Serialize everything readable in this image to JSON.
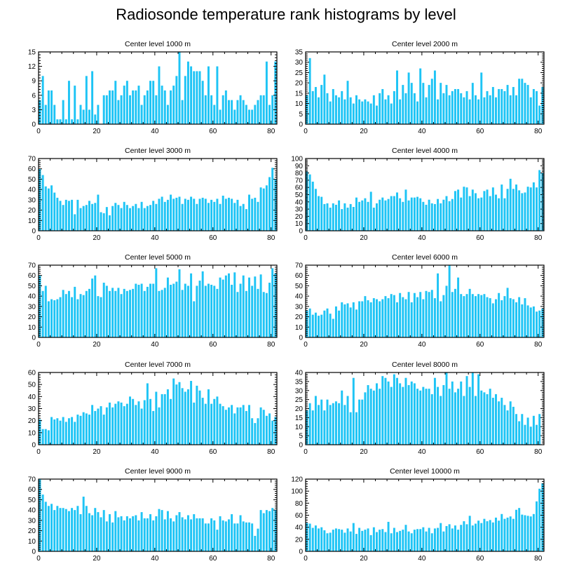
{
  "title": "Radiosonde temperature rank histograms by level",
  "colors": {
    "bar": "#1EC4F5",
    "axis": "#000000",
    "background": "#ffffff"
  },
  "chart_data": [
    {
      "type": "bar",
      "title": "Center level 1000 m",
      "xlim": [
        0,
        82
      ],
      "ylim": [
        0,
        15
      ],
      "xticks": [
        0,
        20,
        40,
        60,
        80
      ],
      "yticks": [
        0,
        3,
        6,
        9,
        12,
        15
      ],
      "x_start": 0,
      "values": [
        5,
        10,
        4,
        7,
        7,
        4,
        1,
        1,
        5,
        1,
        9,
        1,
        8,
        1,
        4,
        3,
        10,
        3,
        11,
        2,
        4,
        0,
        6,
        6,
        7,
        7,
        9,
        5,
        6,
        8,
        9,
        6,
        7,
        7,
        8,
        4,
        6,
        7,
        9,
        9,
        6,
        12,
        8,
        7,
        4,
        7,
        8,
        10,
        15,
        5,
        10,
        13,
        12,
        11,
        11,
        11,
        9,
        6,
        12,
        6,
        4,
        12,
        3,
        6,
        7,
        5,
        5,
        3,
        5,
        6,
        5,
        4,
        3,
        3,
        4,
        5,
        6,
        6,
        13,
        4,
        6,
        13
      ],
      "xlabel": "",
      "ylabel": ""
    },
    {
      "type": "bar",
      "title": "Center level 2000 m",
      "xlim": [
        0,
        82
      ],
      "ylim": [
        0,
        35
      ],
      "xticks": [
        0,
        20,
        40,
        60,
        80
      ],
      "yticks": [
        0,
        5,
        10,
        15,
        20,
        25,
        30,
        35
      ],
      "x_start": 0,
      "values": [
        14,
        32,
        16,
        18,
        13,
        19,
        24,
        15,
        11,
        17,
        14,
        13,
        16,
        12,
        21,
        13,
        10,
        14,
        12,
        11,
        12,
        11,
        10,
        14,
        9,
        15,
        17,
        12,
        14,
        10,
        16,
        26,
        12,
        19,
        15,
        25,
        20,
        15,
        11,
        27,
        20,
        13,
        19,
        22,
        26,
        12,
        20,
        15,
        19,
        14,
        16,
        17,
        17,
        15,
        13,
        16,
        12,
        20,
        14,
        12,
        25,
        13,
        16,
        14,
        18,
        13,
        17,
        17,
        16,
        19,
        14,
        18,
        14,
        22,
        22,
        20,
        19,
        13,
        17,
        16,
        9,
        18
      ],
      "xlabel": "",
      "ylabel": ""
    },
    {
      "type": "bar",
      "title": "Center level 3000 m",
      "xlim": [
        0,
        82
      ],
      "ylim": [
        0,
        70
      ],
      "xticks": [
        0,
        20,
        40,
        60,
        80
      ],
      "yticks": [
        0,
        10,
        20,
        30,
        40,
        50,
        60,
        70
      ],
      "x_start": 0,
      "values": [
        60,
        54,
        43,
        41,
        44,
        37,
        32,
        29,
        25,
        30,
        29,
        30,
        16,
        30,
        22,
        24,
        25,
        29,
        26,
        27,
        35,
        18,
        17,
        23,
        15,
        24,
        27,
        25,
        22,
        28,
        25,
        22,
        24,
        26,
        22,
        28,
        22,
        24,
        25,
        29,
        26,
        31,
        33,
        28,
        30,
        35,
        31,
        32,
        33,
        26,
        31,
        30,
        33,
        31,
        26,
        31,
        32,
        31,
        27,
        30,
        28,
        31,
        26,
        34,
        31,
        32,
        31,
        27,
        30,
        24,
        26,
        21,
        35,
        31,
        32,
        28,
        42,
        41,
        44,
        52,
        61,
        50
      ],
      "xlabel": "",
      "ylabel": ""
    },
    {
      "type": "bar",
      "title": "Center level 4000 m",
      "xlim": [
        0,
        82
      ],
      "ylim": [
        0,
        100
      ],
      "xticks": [
        0,
        20,
        40,
        60,
        80
      ],
      "yticks": [
        0,
        10,
        20,
        30,
        40,
        50,
        60,
        70,
        80,
        90,
        100
      ],
      "x_start": 0,
      "values": [
        82,
        78,
        68,
        58,
        48,
        47,
        37,
        38,
        32,
        38,
        36,
        42,
        30,
        38,
        32,
        37,
        33,
        46,
        40,
        42,
        45,
        40,
        54,
        32,
        38,
        43,
        46,
        42,
        44,
        48,
        48,
        53,
        45,
        40,
        57,
        42,
        46,
        46,
        47,
        45,
        40,
        36,
        43,
        38,
        37,
        44,
        38,
        43,
        48,
        41,
        44,
        55,
        57,
        46,
        61,
        60,
        48,
        57,
        52,
        45,
        46,
        55,
        57,
        48,
        60,
        50,
        45,
        64,
        45,
        58,
        72,
        58,
        64,
        56,
        52,
        53,
        61,
        60,
        67,
        60,
        84,
        80
      ],
      "xlabel": "",
      "ylabel": ""
    },
    {
      "type": "bar",
      "title": "Center level 5000 m",
      "xlim": [
        0,
        82
      ],
      "ylim": [
        0,
        70
      ],
      "xticks": [
        0,
        20,
        40,
        60,
        80
      ],
      "yticks": [
        0,
        10,
        20,
        30,
        40,
        50,
        60,
        70
      ],
      "x_start": 0,
      "values": [
        60,
        45,
        50,
        35,
        37,
        36,
        37,
        39,
        46,
        42,
        45,
        39,
        49,
        37,
        42,
        41,
        45,
        47,
        57,
        60,
        40,
        39,
        53,
        50,
        45,
        48,
        45,
        48,
        42,
        47,
        45,
        46,
        47,
        52,
        51,
        52,
        45,
        49,
        52,
        52,
        67,
        45,
        46,
        48,
        58,
        51,
        52,
        54,
        66,
        46,
        52,
        50,
        62,
        35,
        50,
        55,
        64,
        50,
        52,
        51,
        50,
        47,
        58,
        56,
        60,
        62,
        51,
        63,
        44,
        52,
        60,
        45,
        58,
        50,
        59,
        47,
        61,
        44,
        43,
        53,
        67,
        62
      ],
      "xlabel": "",
      "ylabel": ""
    },
    {
      "type": "bar",
      "title": "Center level 6000 m",
      "xlim": [
        0,
        82
      ],
      "ylim": [
        0,
        70
      ],
      "xticks": [
        0,
        20,
        40,
        60,
        80
      ],
      "yticks": [
        0,
        10,
        20,
        30,
        40,
        50,
        60,
        70
      ],
      "x_start": 0,
      "values": [
        26,
        28,
        22,
        24,
        21,
        22,
        26,
        28,
        23,
        18,
        30,
        26,
        34,
        32,
        33,
        29,
        34,
        27,
        35,
        35,
        40,
        36,
        34,
        38,
        37,
        35,
        37,
        40,
        38,
        42,
        41,
        34,
        43,
        39,
        37,
        44,
        34,
        43,
        39,
        44,
        37,
        45,
        44,
        46,
        38,
        62,
        35,
        41,
        50,
        70,
        44,
        47,
        58,
        42,
        40,
        42,
        47,
        42,
        40,
        42,
        41,
        42,
        39,
        38,
        33,
        37,
        43,
        36,
        40,
        48,
        38,
        37,
        34,
        39,
        32,
        38,
        31,
        29,
        30,
        25,
        26,
        28
      ],
      "xlabel": "",
      "ylabel": ""
    },
    {
      "type": "bar",
      "title": "Center level 7000 m",
      "xlim": [
        0,
        82
      ],
      "ylim": [
        0,
        60
      ],
      "xticks": [
        0,
        20,
        40,
        60,
        80
      ],
      "yticks": [
        0,
        10,
        20,
        30,
        40,
        50,
        60
      ],
      "x_start": 0,
      "values": [
        21,
        13,
        13,
        12,
        23,
        21,
        22,
        20,
        23,
        19,
        22,
        23,
        19,
        25,
        24,
        27,
        26,
        25,
        33,
        28,
        30,
        32,
        25,
        31,
        35,
        31,
        34,
        36,
        35,
        32,
        34,
        40,
        38,
        33,
        36,
        30,
        37,
        51,
        38,
        28,
        44,
        31,
        42,
        42,
        46,
        38,
        55,
        50,
        52,
        47,
        44,
        46,
        53,
        35,
        49,
        45,
        39,
        34,
        46,
        34,
        38,
        40,
        34,
        32,
        29,
        31,
        33,
        26,
        31,
        31,
        33,
        28,
        33,
        22,
        18,
        22,
        31,
        29,
        24,
        26,
        20,
        23
      ],
      "xlabel": "",
      "ylabel": ""
    },
    {
      "type": "bar",
      "title": "Center level 8000 m",
      "xlim": [
        0,
        82
      ],
      "ylim": [
        0,
        40
      ],
      "xticks": [
        0,
        20,
        40,
        60,
        80
      ],
      "yticks": [
        0,
        5,
        10,
        15,
        20,
        25,
        30,
        35,
        40
      ],
      "x_start": 0,
      "values": [
        19,
        23,
        19,
        27,
        22,
        25,
        19,
        25,
        22,
        23,
        24,
        23,
        30,
        22,
        27,
        18,
        37,
        18,
        25,
        25,
        29,
        33,
        31,
        30,
        34,
        31,
        38,
        37,
        35,
        32,
        39,
        37,
        34,
        32,
        37,
        33,
        35,
        34,
        31,
        30,
        32,
        31,
        31,
        28,
        37,
        32,
        27,
        33,
        40,
        31,
        35,
        29,
        31,
        35,
        27,
        38,
        32,
        40,
        27,
        39,
        30,
        29,
        28,
        31,
        26,
        28,
        24,
        26,
        22,
        19,
        24,
        21,
        17,
        13,
        17,
        11,
        15,
        10,
        16,
        11,
        17,
        0
      ],
      "xlabel": "",
      "ylabel": ""
    },
    {
      "type": "bar",
      "title": "Center level 9000 m",
      "xlim": [
        0,
        82
      ],
      "ylim": [
        0,
        70
      ],
      "xticks": [
        0,
        20,
        40,
        60,
        80
      ],
      "yticks": [
        0,
        10,
        20,
        30,
        40,
        50,
        60,
        70
      ],
      "x_start": 0,
      "values": [
        70,
        55,
        48,
        44,
        46,
        40,
        44,
        42,
        42,
        41,
        39,
        42,
        40,
        44,
        36,
        53,
        44,
        37,
        35,
        42,
        38,
        33,
        40,
        29,
        36,
        28,
        39,
        33,
        34,
        30,
        34,
        32,
        34,
        35,
        30,
        38,
        32,
        32,
        36,
        30,
        34,
        41,
        40,
        31,
        39,
        32,
        29,
        35,
        38,
        33,
        31,
        35,
        31,
        36,
        32,
        32,
        32,
        27,
        27,
        32,
        30,
        21,
        34,
        30,
        29,
        31,
        36,
        27,
        27,
        35,
        29,
        28,
        28,
        27,
        15,
        22,
        40,
        37,
        40,
        39,
        42,
        40
      ],
      "xlabel": "",
      "ylabel": ""
    },
    {
      "type": "bar",
      "title": "Center level 10000 m",
      "xlim": [
        0,
        82
      ],
      "ylim": [
        0,
        120
      ],
      "xticks": [
        0,
        20,
        40,
        60,
        80
      ],
      "yticks": [
        0,
        20,
        40,
        60,
        80,
        100,
        120
      ],
      "x_start": 0,
      "values": [
        47,
        46,
        39,
        43,
        38,
        40,
        35,
        30,
        31,
        36,
        38,
        37,
        36,
        31,
        38,
        33,
        47,
        29,
        39,
        34,
        36,
        38,
        27,
        40,
        32,
        36,
        37,
        32,
        49,
        30,
        39,
        32,
        34,
        36,
        44,
        33,
        30,
        36,
        37,
        37,
        40,
        33,
        39,
        30,
        38,
        39,
        47,
        33,
        42,
        45,
        38,
        43,
        36,
        44,
        50,
        45,
        59,
        43,
        46,
        51,
        47,
        54,
        50,
        52,
        48,
        56,
        51,
        62,
        54,
        56,
        58,
        54,
        69,
        72,
        61,
        60,
        59,
        58,
        62,
        83,
        104,
        113
      ],
      "xlabel": "",
      "ylabel": ""
    }
  ]
}
